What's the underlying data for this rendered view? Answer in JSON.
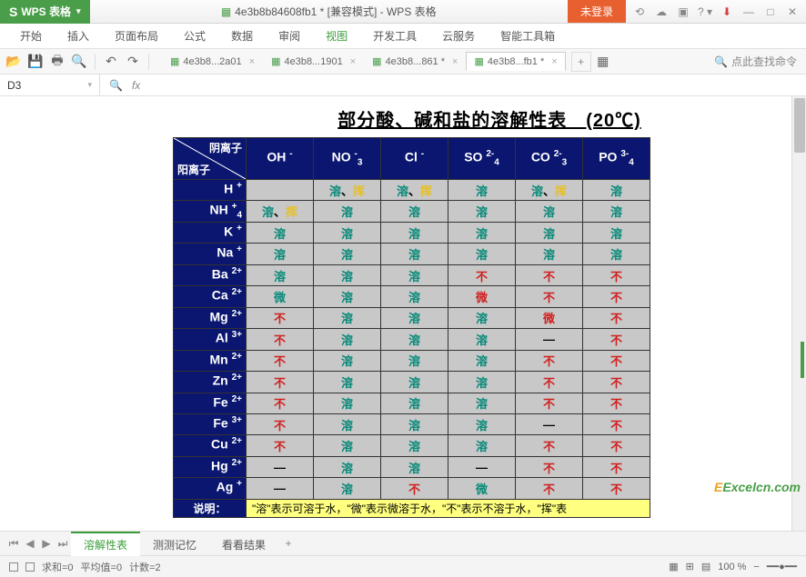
{
  "app": {
    "badge_s": "S",
    "badge_name": "WPS 表格"
  },
  "title": {
    "icon": "▦",
    "doc": "4e3b8b84608fb1 * [兼容模式] - WPS 表格",
    "login": "未登录"
  },
  "menu": [
    "开始",
    "插入",
    "页面布局",
    "公式",
    "数据",
    "审阅",
    "视图",
    "开发工具",
    "云服务",
    "智能工具箱"
  ],
  "menu_active_index": 6,
  "doc_tabs": [
    {
      "label": "4e3b8...2a01",
      "close": "×",
      "active": false
    },
    {
      "label": "4e3b8...1901",
      "close": "×",
      "active": false
    },
    {
      "label": "4e3b8...861 *",
      "close": "×",
      "active": false
    },
    {
      "label": "4e3b8...fb1 *",
      "close": "×",
      "active": true
    }
  ],
  "search_placeholder": "点此查找命令",
  "namebox": "D3",
  "fx_label": "fx",
  "chart": {
    "title": "部分酸、碱和盐的溶解性表　(20℃)",
    "diag_top": "阴离子",
    "diag_bottom": "阳离子",
    "anions": [
      {
        "base": "OH",
        "sup": "-",
        "sub": ""
      },
      {
        "base": "NO",
        "sup": "-",
        "sub": "3"
      },
      {
        "base": "Cl",
        "sup": "-",
        "sub": ""
      },
      {
        "base": "SO",
        "sup": "2-",
        "sub": "4"
      },
      {
        "base": "CO",
        "sup": "2-",
        "sub": "3"
      },
      {
        "base": "PO",
        "sup": "3-",
        "sub": "4"
      }
    ],
    "cations": [
      {
        "base": "H",
        "sup": "+",
        "sub": ""
      },
      {
        "base": "NH",
        "sup": "+",
        "sub": "4"
      },
      {
        "base": "K",
        "sup": "+",
        "sub": ""
      },
      {
        "base": "Na",
        "sup": "+",
        "sub": ""
      },
      {
        "base": "Ba",
        "sup": "2+",
        "sub": ""
      },
      {
        "base": "Ca",
        "sup": "2+",
        "sub": ""
      },
      {
        "base": "Mg",
        "sup": "2+",
        "sub": ""
      },
      {
        "base": "Al",
        "sup": "3+",
        "sub": ""
      },
      {
        "base": "Mn",
        "sup": "2+",
        "sub": ""
      },
      {
        "base": "Zn",
        "sup": "2+",
        "sub": ""
      },
      {
        "base": "Fe",
        "sup": "2+",
        "sub": ""
      },
      {
        "base": "Fe",
        "sup": "3+",
        "sub": ""
      },
      {
        "base": "Cu",
        "sup": "2+",
        "sub": ""
      },
      {
        "base": "Hg",
        "sup": "2+",
        "sub": ""
      },
      {
        "base": "Ag",
        "sup": "+",
        "sub": ""
      }
    ],
    "cells": [
      [
        {
          "t": "",
          "c": ""
        },
        {
          "t": "溶、挥",
          "c": "mix"
        },
        {
          "t": "溶、挥",
          "c": "mix"
        },
        {
          "t": "溶",
          "c": "teal"
        },
        {
          "t": "溶、挥",
          "c": "mix"
        },
        {
          "t": "溶",
          "c": "teal"
        }
      ],
      [
        {
          "t": "溶、挥",
          "c": "mix"
        },
        {
          "t": "溶",
          "c": "teal"
        },
        {
          "t": "溶",
          "c": "teal"
        },
        {
          "t": "溶",
          "c": "teal"
        },
        {
          "t": "溶",
          "c": "teal"
        },
        {
          "t": "溶",
          "c": "teal"
        }
      ],
      [
        {
          "t": "溶",
          "c": "teal"
        },
        {
          "t": "溶",
          "c": "teal"
        },
        {
          "t": "溶",
          "c": "teal"
        },
        {
          "t": "溶",
          "c": "teal"
        },
        {
          "t": "溶",
          "c": "teal"
        },
        {
          "t": "溶",
          "c": "teal"
        }
      ],
      [
        {
          "t": "溶",
          "c": "teal"
        },
        {
          "t": "溶",
          "c": "teal"
        },
        {
          "t": "溶",
          "c": "teal"
        },
        {
          "t": "溶",
          "c": "teal"
        },
        {
          "t": "溶",
          "c": "teal"
        },
        {
          "t": "溶",
          "c": "teal"
        }
      ],
      [
        {
          "t": "溶",
          "c": "teal"
        },
        {
          "t": "溶",
          "c": "teal"
        },
        {
          "t": "溶",
          "c": "teal"
        },
        {
          "t": "不",
          "c": "red"
        },
        {
          "t": "不",
          "c": "red"
        },
        {
          "t": "不",
          "c": "red"
        }
      ],
      [
        {
          "t": "微",
          "c": "teal"
        },
        {
          "t": "溶",
          "c": "teal"
        },
        {
          "t": "溶",
          "c": "teal"
        },
        {
          "t": "微",
          "c": "red"
        },
        {
          "t": "不",
          "c": "red"
        },
        {
          "t": "不",
          "c": "red"
        }
      ],
      [
        {
          "t": "不",
          "c": "red"
        },
        {
          "t": "溶",
          "c": "teal"
        },
        {
          "t": "溶",
          "c": "teal"
        },
        {
          "t": "溶",
          "c": "teal"
        },
        {
          "t": "微",
          "c": "red"
        },
        {
          "t": "不",
          "c": "red"
        }
      ],
      [
        {
          "t": "不",
          "c": "red"
        },
        {
          "t": "溶",
          "c": "teal"
        },
        {
          "t": "溶",
          "c": "teal"
        },
        {
          "t": "溶",
          "c": "teal"
        },
        {
          "t": "—",
          "c": "black"
        },
        {
          "t": "不",
          "c": "red"
        }
      ],
      [
        {
          "t": "不",
          "c": "red"
        },
        {
          "t": "溶",
          "c": "teal"
        },
        {
          "t": "溶",
          "c": "teal"
        },
        {
          "t": "溶",
          "c": "teal"
        },
        {
          "t": "不",
          "c": "red"
        },
        {
          "t": "不",
          "c": "red"
        }
      ],
      [
        {
          "t": "不",
          "c": "red"
        },
        {
          "t": "溶",
          "c": "teal"
        },
        {
          "t": "溶",
          "c": "teal"
        },
        {
          "t": "溶",
          "c": "teal"
        },
        {
          "t": "不",
          "c": "red"
        },
        {
          "t": "不",
          "c": "red"
        }
      ],
      [
        {
          "t": "不",
          "c": "red"
        },
        {
          "t": "溶",
          "c": "teal"
        },
        {
          "t": "溶",
          "c": "teal"
        },
        {
          "t": "溶",
          "c": "teal"
        },
        {
          "t": "不",
          "c": "red"
        },
        {
          "t": "不",
          "c": "red"
        }
      ],
      [
        {
          "t": "不",
          "c": "red"
        },
        {
          "t": "溶",
          "c": "teal"
        },
        {
          "t": "溶",
          "c": "teal"
        },
        {
          "t": "溶",
          "c": "teal"
        },
        {
          "t": "—",
          "c": "black"
        },
        {
          "t": "不",
          "c": "red"
        }
      ],
      [
        {
          "t": "不",
          "c": "red"
        },
        {
          "t": "溶",
          "c": "teal"
        },
        {
          "t": "溶",
          "c": "teal"
        },
        {
          "t": "溶",
          "c": "teal"
        },
        {
          "t": "不",
          "c": "red"
        },
        {
          "t": "不",
          "c": "red"
        }
      ],
      [
        {
          "t": "—",
          "c": "black"
        },
        {
          "t": "溶",
          "c": "teal"
        },
        {
          "t": "溶",
          "c": "teal"
        },
        {
          "t": "—",
          "c": "black"
        },
        {
          "t": "不",
          "c": "red"
        },
        {
          "t": "不",
          "c": "red"
        }
      ],
      [
        {
          "t": "—",
          "c": "black"
        },
        {
          "t": "溶",
          "c": "teal"
        },
        {
          "t": "不",
          "c": "red"
        },
        {
          "t": "微",
          "c": "teal"
        },
        {
          "t": "不",
          "c": "red"
        },
        {
          "t": "不",
          "c": "red"
        }
      ]
    ],
    "legend_label": "说明：",
    "legend_text": "\"溶\"表示可溶于水，\"微\"表示微溶于水，\"不\"表示不溶于水，\"挥\"表"
  },
  "sheet_tabs": [
    "溶解性表",
    "测测记忆",
    "看看结果"
  ],
  "sheet_active_index": 0,
  "status": {
    "sum": "求和=0",
    "avg": "平均值=0",
    "count": "计数=2",
    "zoom": "100 %"
  },
  "watermark": "Excelcn.com"
}
